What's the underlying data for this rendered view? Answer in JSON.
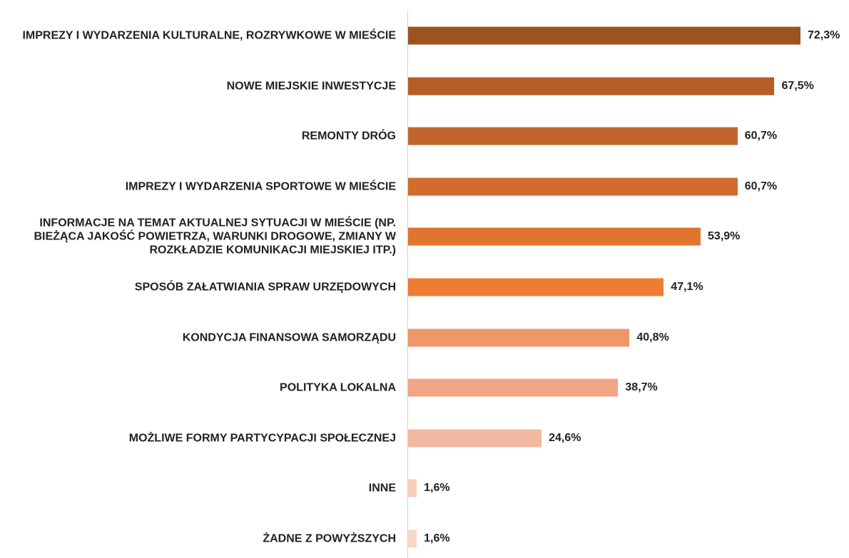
{
  "chart_data": {
    "type": "bar",
    "orientation": "horizontal",
    "categories": [
      "IMPREZY I WYDARZENIA KULTURALNE, ROZRYWKOWE W MIEŚCIE",
      "NOWE MIEJSKIE INWESTYCJE",
      "REMONTY DRÓG",
      "IMPREZY I WYDARZENIA SPORTOWE W MIEŚCIE",
      "INFORMACJE NA TEMAT AKTUALNEJ SYTUACJI W MIEŚCIE (NP. BIEŻĄCA JAKOŚĆ POWIETRZA, WARUNKI DROGOWE, ZMIANY W ROZKŁADZIE KOMUNIKACJI MIEJSKIEJ ITP.)",
      "SPOSÓB ZAŁATWIANIA SPRAW URZĘDOWYCH",
      "KONDYCJA FINANSOWA SAMORZĄDU",
      "POLITYKA LOKALNA",
      "MOŻLIWE FORMY PARTYCYPACJI SPOŁECZNEJ",
      "INNE",
      "ŻADNE Z POWYŻSZYCH"
    ],
    "values": [
      72.3,
      67.5,
      60.7,
      60.7,
      53.9,
      47.1,
      40.8,
      38.7,
      24.6,
      1.6,
      1.6
    ],
    "value_labels": [
      "72,3%",
      "67,5%",
      "60,7%",
      "60,7%",
      "53,9%",
      "47,1%",
      "40,8%",
      "38,7%",
      "24,6%",
      "1,6%",
      "1,6%"
    ],
    "colors": [
      "#9e5220",
      "#b45e25",
      "#c2652a",
      "#d06c2c",
      "#e07530",
      "#ee7d33",
      "#f0976a",
      "#f2a585",
      "#f4b9a3",
      "#f6cdbd",
      "#f7d6c8"
    ]
  }
}
